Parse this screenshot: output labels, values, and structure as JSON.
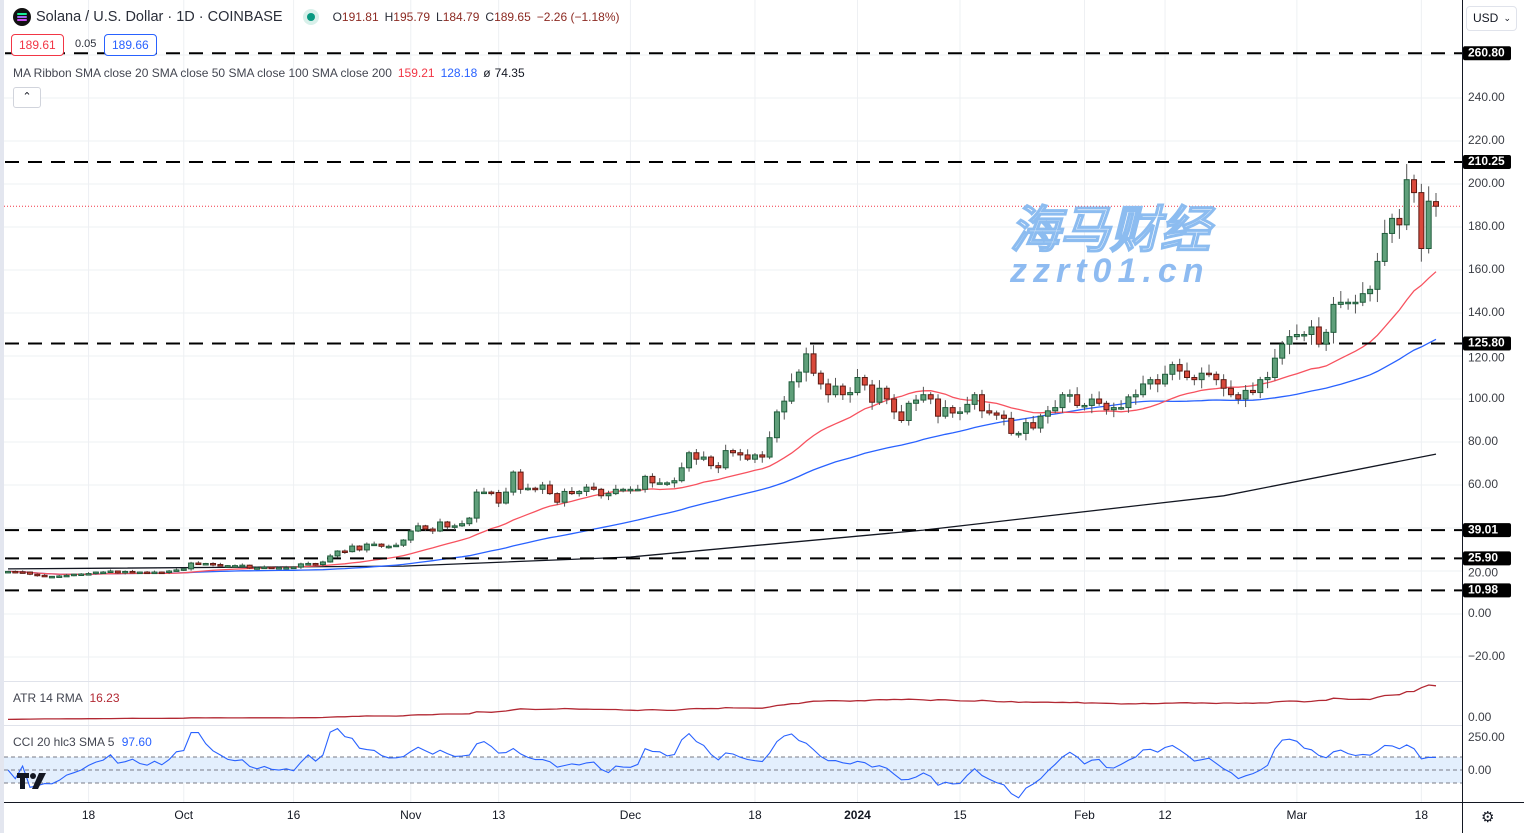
{
  "header": {
    "symbol_title": "Solana / U.S. Dollar · 1D · COINBASE",
    "market_status": "open",
    "ohlc": [
      {
        "k": "O",
        "v": "191.81"
      },
      {
        "k": "H",
        "v": "195.79"
      },
      {
        "k": "L",
        "v": "184.79"
      },
      {
        "k": "C",
        "v": "189.65"
      }
    ],
    "change": "−2.26 (−1.18%)",
    "sell_price": "189.61",
    "spread": "0.05",
    "buy_price": "189.66",
    "currency": "USD"
  },
  "ma_legend": {
    "label": "MA Ribbon SMA close 20 SMA close 50 SMA close 100 SMA close 200",
    "v1": "159.21",
    "v2": "128.18",
    "v3_prefix": "ø",
    "v3": "74.35"
  },
  "atr_legend": {
    "label": "ATR 14 RMA",
    "value": "16.23"
  },
  "cci_legend": {
    "label": "CCI 20 hlc3 SMA 5",
    "value": "97.60"
  },
  "watermark": {
    "line1": "海马财经",
    "line2": "zzrt01.cn"
  },
  "colors": {
    "up": "#5f9f7a",
    "up_border": "#1f5c3b",
    "down": "#d9493b",
    "down_border": "#5c1a13",
    "sma20": "#f7525f",
    "sma50": "#2962ff",
    "sma200": "#131722",
    "atr": "#b22833",
    "cci": "#2962ff",
    "cci_band": "#e3effd",
    "level": "#000000",
    "last_price": "#f23645"
  },
  "chart_data": {
    "type": "candlestick",
    "symbol": "SOLUSD",
    "interval": "1D",
    "first_date": "2023-09-07",
    "closes": [
      19.8,
      19.6,
      19.5,
      18.5,
      18,
      17.5,
      17.5,
      17.7,
      18,
      18.5,
      18.6,
      18.8,
      19.5,
      19.5,
      20,
      19.1,
      19.8,
      19.5,
      19.5,
      19.3,
      19.5,
      19.3,
      20,
      20.5,
      21,
      23.7,
      23.5,
      23.5,
      23,
      22.5,
      22.5,
      22.5,
      22.7,
      21.4,
      21.5,
      21.8,
      21.5,
      21.6,
      21.6,
      21.8,
      23.3,
      23.5,
      23,
      24.2,
      27,
      29.3,
      29,
      31.6,
      29.8,
      32.5,
      32.5,
      31.5,
      31.5,
      32,
      34.4,
      38.6,
      41,
      39.5,
      38.6,
      42.8,
      40.5,
      41,
      42,
      44.6,
      56.7,
      56.7,
      56.5,
      51.6,
      56.7,
      66,
      58,
      58.5,
      58,
      60,
      56,
      52,
      57,
      56,
      57,
      59,
      58,
      55,
      56,
      58,
      58,
      58,
      58,
      64,
      61,
      61,
      61,
      62,
      68,
      75,
      72,
      73,
      69,
      68,
      76,
      75,
      74,
      72,
      74,
      73,
      82,
      94,
      99,
      108,
      112.5,
      121,
      112,
      107,
      102,
      106,
      102,
      103,
      110,
      106.5,
      98.5,
      105,
      100,
      94,
      90,
      98,
      99.5,
      102,
      100,
      92,
      96,
      93.5,
      94,
      97.5,
      102,
      94.5,
      93.5,
      92.5,
      91,
      84,
      84,
      89,
      86.5,
      92,
      94.5,
      96,
      102,
      102,
      97,
      97,
      100,
      98,
      95,
      96,
      96,
      101,
      102,
      107,
      109,
      107,
      111.5,
      116,
      113,
      110,
      109,
      112,
      111.5,
      109,
      105,
      102,
      100,
      104,
      103,
      109,
      110,
      119,
      125.5,
      129,
      130,
      130,
      133.5,
      125.5,
      131,
      144,
      145,
      145,
      145,
      149,
      151,
      164,
      177,
      184,
      181,
      202,
      196,
      170,
      192,
      189.65
    ],
    "last_open": 191.81,
    "last_high": 195.79,
    "last_low": 184.79,
    "last_close": 189.65,
    "sma200": [
      [
        "2023-09-07",
        21
      ],
      [
        "2023-10-31",
        22.3
      ],
      [
        "2023-12-01",
        26.5
      ],
      [
        "2024-01-10",
        39
      ],
      [
        "2024-02-20",
        55
      ],
      [
        "2024-03-20",
        74.35
      ]
    ],
    "horizontal_levels": [
      "260.80",
      "210.25",
      "125.80",
      "39.01",
      "25.90",
      "10.98"
    ],
    "yticks": [
      "240.00",
      "220.00",
      "200.00",
      "180.00",
      "160.00",
      "140.00",
      "120.00",
      "100.00",
      "80.00",
      "60.00",
      "20.00",
      "0.00",
      "−20.00"
    ],
    "ylim": [
      -25,
      275
    ],
    "atr_ticks": [
      "0.00"
    ],
    "cci_ticks": [
      "250.00",
      "0.00"
    ],
    "cci_levels": [
      100,
      0,
      -100
    ],
    "xticks": [
      {
        "label": "18",
        "date": "2023-09-18"
      },
      {
        "label": "Oct",
        "date": "2023-10-01"
      },
      {
        "label": "16",
        "date": "2023-10-16"
      },
      {
        "label": "Nov",
        "date": "2023-11-01"
      },
      {
        "label": "13",
        "date": "2023-11-13"
      },
      {
        "label": "Dec",
        "date": "2023-12-01"
      },
      {
        "label": "18",
        "date": "2023-12-18"
      },
      {
        "label": "2024",
        "date": "2024-01-01"
      },
      {
        "label": "15",
        "date": "2024-01-15"
      },
      {
        "label": "Feb",
        "date": "2024-02-01"
      },
      {
        "label": "12",
        "date": "2024-02-12"
      },
      {
        "label": "Mar",
        "date": "2024-03-01"
      },
      {
        "label": "18",
        "date": "2024-03-18"
      }
    ],
    "grid": true,
    "legend": "top-left"
  }
}
